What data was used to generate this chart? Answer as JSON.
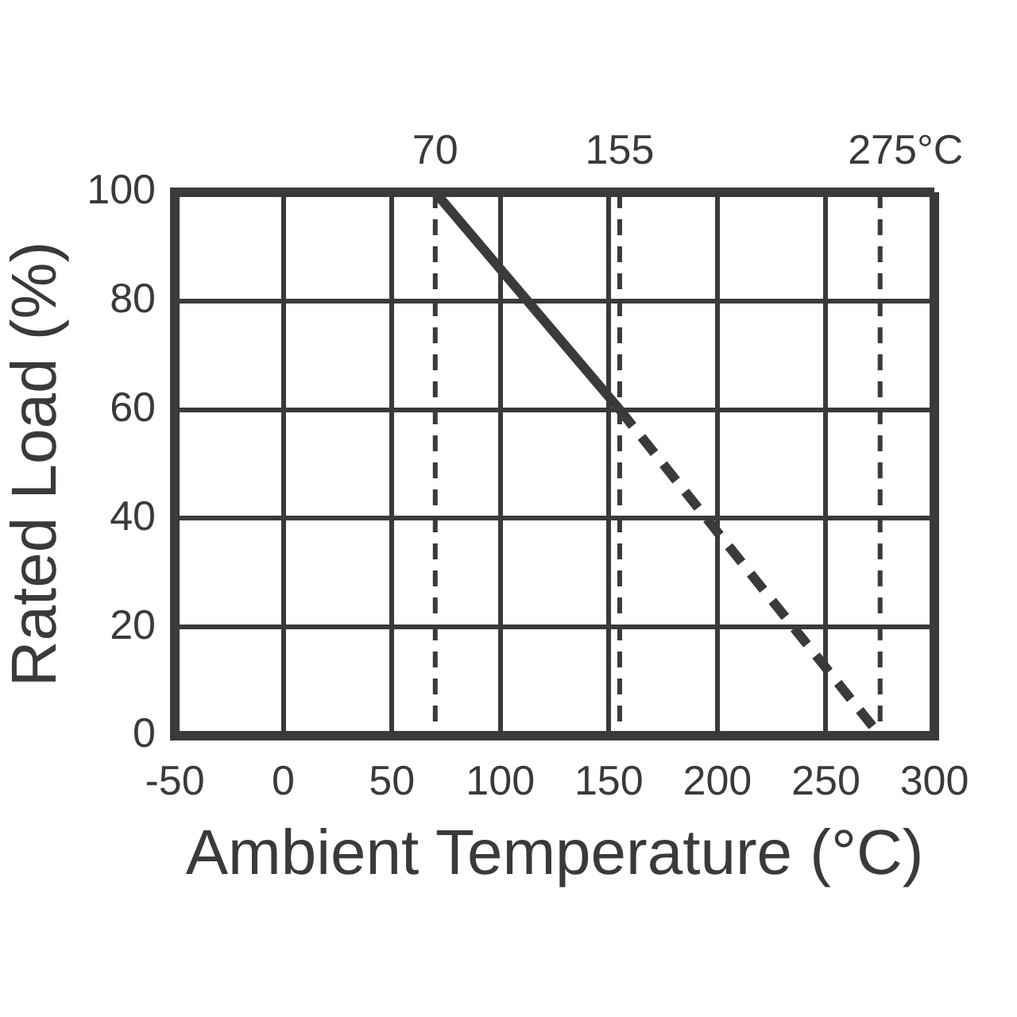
{
  "chart_data": {
    "type": "line",
    "xlabel": "Ambient Temperature (°C)",
    "ylabel": "Rated Load (%)",
    "xlim": [
      -50,
      300
    ],
    "xticks": [
      -50,
      0,
      50,
      100,
      150,
      200,
      250,
      300
    ],
    "ylim": [
      0,
      100
    ],
    "yticks": [
      0,
      20,
      40,
      60,
      80,
      100
    ],
    "grid": true,
    "legend": false,
    "marker": "none",
    "series": [
      {
        "color": "#3a3a3a",
        "x": [
          -50,
          70,
          155
        ],
        "values": [
          100,
          100,
          60
        ],
        "line_style": "solid"
      },
      {
        "color": "#3a3a3a",
        "x": [
          155,
          275
        ],
        "values": [
          60,
          0
        ],
        "line_style": "dashed"
      }
    ],
    "ref_lines": [
      {
        "axis": "x",
        "value": 70,
        "label": "70",
        "color": "#3a3a3a",
        "line_style": "dashed"
      },
      {
        "axis": "x",
        "value": 155,
        "label": "155",
        "color": "#3a3a3a",
        "line_style": "dashed"
      },
      {
        "axis": "x",
        "value": 275,
        "label": "275°C",
        "color": "#3a3a3a",
        "line_style": "dashed"
      }
    ]
  }
}
